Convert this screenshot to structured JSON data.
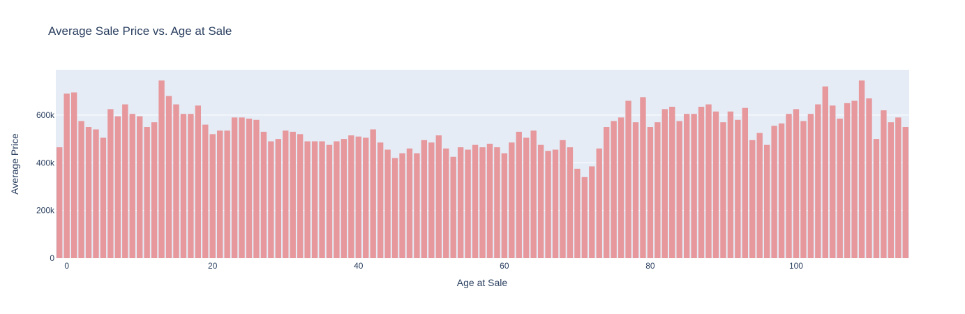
{
  "chart_data": {
    "type": "bar",
    "title": "Average Sale Price vs. Age at Sale",
    "xlabel": "Age at Sale",
    "ylabel": "Average Price",
    "xlim": [
      -1.5,
      115.5
    ],
    "ylim": [
      0,
      790000
    ],
    "x_ticks": [
      0,
      20,
      40,
      60,
      80,
      100
    ],
    "x_tick_labels": [
      "0",
      "20",
      "40",
      "60",
      "80",
      "100"
    ],
    "y_ticks": [
      0,
      200000,
      400000,
      600000
    ],
    "y_tick_labels": [
      "0",
      "200k",
      "400k",
      "600k"
    ],
    "grid": true,
    "bar_color": "#e6989c",
    "plot_bg": "#e5ecf6",
    "x": [
      -1,
      0,
      1,
      2,
      3,
      4,
      5,
      6,
      7,
      8,
      9,
      10,
      11,
      12,
      13,
      14,
      15,
      16,
      17,
      18,
      19,
      20,
      21,
      22,
      23,
      24,
      25,
      26,
      27,
      28,
      29,
      30,
      31,
      32,
      33,
      34,
      35,
      36,
      37,
      38,
      39,
      40,
      41,
      42,
      43,
      44,
      45,
      46,
      47,
      48,
      49,
      50,
      51,
      52,
      53,
      54,
      55,
      56,
      57,
      58,
      59,
      60,
      61,
      62,
      63,
      64,
      65,
      66,
      67,
      68,
      69,
      70,
      71,
      72,
      73,
      74,
      75,
      76,
      77,
      78,
      79,
      80,
      81,
      82,
      83,
      84,
      85,
      86,
      87,
      88,
      89,
      90,
      91,
      92,
      93,
      94,
      95,
      96,
      97,
      98,
      99,
      100,
      101,
      102,
      103,
      104,
      105,
      106,
      107,
      108,
      109,
      110,
      111,
      112,
      113,
      114,
      115
    ],
    "values": [
      465000,
      690000,
      695000,
      575000,
      550000,
      540000,
      505000,
      625000,
      595000,
      645000,
      605000,
      595000,
      550000,
      570000,
      745000,
      680000,
      645000,
      605000,
      605000,
      640000,
      560000,
      520000,
      535000,
      535000,
      590000,
      590000,
      585000,
      580000,
      530000,
      490000,
      500000,
      535000,
      530000,
      520000,
      490000,
      490000,
      490000,
      475000,
      490000,
      500000,
      515000,
      510000,
      505000,
      540000,
      485000,
      455000,
      420000,
      440000,
      460000,
      440000,
      495000,
      485000,
      515000,
      460000,
      425000,
      465000,
      455000,
      475000,
      465000,
      480000,
      465000,
      440000,
      485000,
      530000,
      505000,
      535000,
      475000,
      450000,
      455000,
      495000,
      465000,
      375000,
      340000,
      385000,
      460000,
      550000,
      575000,
      590000,
      660000,
      570000,
      675000,
      550000,
      570000,
      625000,
      635000,
      575000,
      605000,
      605000,
      635000,
      645000,
      615000,
      570000,
      615000,
      580000,
      630000,
      495000,
      525000,
      475000,
      555000,
      565000,
      605000,
      625000,
      575000,
      605000,
      645000,
      720000,
      640000,
      585000,
      650000,
      660000,
      745000,
      670000,
      500000,
      620000,
      570000,
      590000,
      550000
    ]
  }
}
